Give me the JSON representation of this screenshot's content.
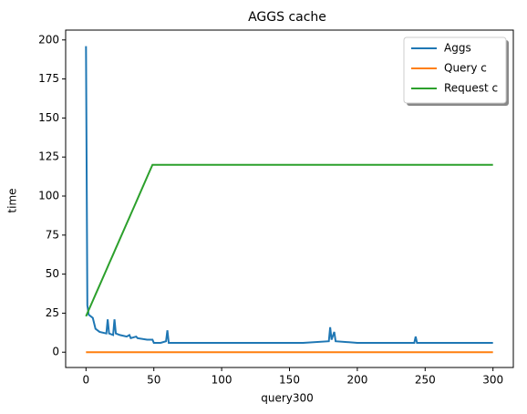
{
  "chart_data": {
    "type": "line",
    "title": "AGGS cache",
    "xlabel": "query300",
    "ylabel": "time",
    "x": [
      0,
      1,
      2,
      5,
      7,
      10,
      15,
      16,
      17,
      20,
      21,
      22,
      25,
      30,
      32,
      33,
      37,
      38,
      45,
      49,
      50,
      55,
      59,
      60,
      61,
      70,
      80,
      90,
      100,
      120,
      140,
      160,
      179,
      180,
      181,
      183,
      184,
      200,
      220,
      242,
      243,
      244,
      260,
      280,
      290,
      300
    ],
    "series": [
      {
        "name": "Aggs",
        "color": "#1f77b4",
        "values": [
          196,
          30,
          24,
          22,
          15,
          13,
          12,
          21,
          12,
          11,
          21,
          12,
          11,
          10,
          11,
          9,
          10,
          9,
          8,
          8,
          6,
          6,
          7,
          14,
          6,
          6,
          6,
          6,
          6,
          6,
          6,
          6,
          7,
          16,
          8,
          13,
          7,
          6,
          6,
          6,
          10,
          6,
          6,
          6,
          6,
          6
        ]
      },
      {
        "name": "Query c",
        "color": "#ff7f0e",
        "values": [
          0,
          0,
          0,
          0,
          0,
          0,
          0,
          0,
          0,
          0,
          0,
          0,
          0,
          0,
          0,
          0,
          0,
          0,
          0,
          0,
          0,
          0,
          0,
          0,
          0,
          0,
          0,
          0,
          0,
          0,
          0,
          0,
          0,
          0,
          0,
          0,
          0,
          0,
          0,
          0,
          0,
          0,
          0,
          0,
          0,
          0
        ]
      },
      {
        "name": "Request c",
        "color": "#2ca02c",
        "values": [
          23,
          25,
          27,
          32.9,
          36.9,
          42.8,
          52.7,
          54.7,
          56.7,
          62.6,
          64.6,
          66.6,
          72.5,
          82.4,
          86.3,
          88.3,
          96.2,
          98.2,
          112.1,
          120,
          120,
          120,
          120,
          120,
          120,
          120,
          120,
          120,
          120,
          120,
          120,
          120,
          120,
          120,
          120,
          120,
          120,
          120,
          120,
          120,
          120,
          120,
          120,
          120,
          120,
          120
        ]
      }
    ],
    "xlim": [
      -15,
      315
    ],
    "ylim": [
      -9.8,
      206.3
    ],
    "xticks": [
      0,
      50,
      100,
      150,
      200,
      250,
      300
    ],
    "yticks": [
      0,
      25,
      50,
      75,
      100,
      125,
      150,
      175,
      200
    ],
    "legend": "upper right"
  }
}
